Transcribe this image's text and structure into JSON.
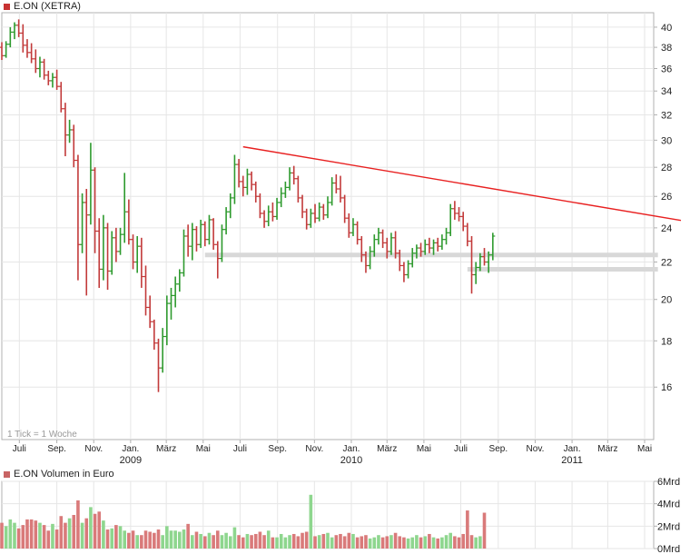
{
  "price_panel": {
    "legend": "E.ON (XETRA)",
    "legend_color": "#c83232",
    "note": "1 Tick = 1 Woche"
  },
  "volume_panel": {
    "legend": "E.ON Volumen in Euro",
    "legend_color": "#c86464"
  },
  "colors": {
    "up": "#2e9a2e",
    "down": "#c23a3a",
    "trendline": "#e82020",
    "support": "#d8d8d8",
    "vol_up": "#8ed68e",
    "vol_down": "#d97a7a",
    "grid": "#e6e6e6",
    "axis": "#b0b0b0"
  },
  "chart_data": [
    {
      "type": "ohlc",
      "interval": "weekly",
      "ylim": [
        14,
        41.5
      ],
      "y_scale": "log",
      "yticks": [
        16,
        18,
        20,
        22,
        24,
        26,
        28,
        30,
        32,
        34,
        36,
        38,
        40
      ],
      "x_start": "2008-06-02",
      "x_end": "2011-05-16",
      "xticks": [
        {
          "date": "2008-07-01",
          "label": "Juli"
        },
        {
          "date": "2008-09-01",
          "label": "Sep."
        },
        {
          "date": "2008-11-01",
          "label": "Nov."
        },
        {
          "date": "2009-01-01",
          "label": "Jan."
        },
        {
          "date": "2009-03-01",
          "label": "März"
        },
        {
          "date": "2009-05-01",
          "label": "Mai"
        },
        {
          "date": "2009-07-01",
          "label": "Juli"
        },
        {
          "date": "2009-09-01",
          "label": "Sep."
        },
        {
          "date": "2009-11-01",
          "label": "Nov."
        },
        {
          "date": "2010-01-01",
          "label": "Jan."
        },
        {
          "date": "2010-03-01",
          "label": "März"
        },
        {
          "date": "2010-05-01",
          "label": "Mai"
        },
        {
          "date": "2010-07-01",
          "label": "Juli"
        },
        {
          "date": "2010-09-01",
          "label": "Sep."
        },
        {
          "date": "2010-11-01",
          "label": "Nov."
        },
        {
          "date": "2011-01-01",
          "label": "Jan."
        },
        {
          "date": "2011-03-01",
          "label": "März"
        },
        {
          "date": "2011-05-01",
          "label": "Mai"
        }
      ],
      "year_labels": [
        {
          "date": "2009-01-01",
          "label": "2009"
        },
        {
          "date": "2010-01-01",
          "label": "2010"
        },
        {
          "date": "2011-01-01",
          "label": "2011"
        }
      ],
      "weeks": [
        {
          "o": 38.0,
          "h": 38.5,
          "l": 36.8,
          "c": 37.2
        },
        {
          "o": 37.2,
          "h": 38.6,
          "l": 37.0,
          "c": 38.3
        },
        {
          "o": 38.3,
          "h": 40.0,
          "l": 38.0,
          "c": 39.5
        },
        {
          "o": 39.5,
          "h": 40.5,
          "l": 38.8,
          "c": 40.2
        },
        {
          "o": 40.2,
          "h": 40.8,
          "l": 39.0,
          "c": 39.4
        },
        {
          "o": 39.4,
          "h": 40.3,
          "l": 37.5,
          "c": 38.2
        },
        {
          "o": 38.2,
          "h": 38.8,
          "l": 37.0,
          "c": 37.5
        },
        {
          "o": 37.5,
          "h": 38.4,
          "l": 36.5,
          "c": 36.9
        },
        {
          "o": 36.9,
          "h": 37.8,
          "l": 35.6,
          "c": 36.0
        },
        {
          "o": 36.0,
          "h": 37.1,
          "l": 35.2,
          "c": 36.6
        },
        {
          "o": 36.6,
          "h": 36.9,
          "l": 35.0,
          "c": 35.4
        },
        {
          "o": 35.4,
          "h": 35.8,
          "l": 34.5,
          "c": 34.9
        },
        {
          "o": 34.9,
          "h": 35.6,
          "l": 34.3,
          "c": 35.2
        },
        {
          "o": 35.2,
          "h": 35.9,
          "l": 34.1,
          "c": 34.4
        },
        {
          "o": 34.4,
          "h": 34.8,
          "l": 32.2,
          "c": 32.5
        },
        {
          "o": 32.5,
          "h": 33.0,
          "l": 28.8,
          "c": 30.4
        },
        {
          "o": 30.4,
          "h": 31.6,
          "l": 29.8,
          "c": 30.8
        },
        {
          "o": 30.8,
          "h": 31.2,
          "l": 28.0,
          "c": 28.5
        },
        {
          "o": 28.5,
          "h": 28.9,
          "l": 21.0,
          "c": 23.0
        },
        {
          "o": 23.0,
          "h": 26.2,
          "l": 22.5,
          "c": 25.6
        },
        {
          "o": 25.6,
          "h": 26.5,
          "l": 20.2,
          "c": 24.8
        },
        {
          "o": 24.8,
          "h": 29.8,
          "l": 24.2,
          "c": 27.8
        },
        {
          "o": 27.8,
          "h": 28.0,
          "l": 22.5,
          "c": 23.8
        },
        {
          "o": 23.8,
          "h": 24.6,
          "l": 20.6,
          "c": 21.6
        },
        {
          "o": 21.6,
          "h": 24.8,
          "l": 21.0,
          "c": 24.0
        },
        {
          "o": 24.0,
          "h": 24.3,
          "l": 20.5,
          "c": 21.5
        },
        {
          "o": 21.5,
          "h": 23.8,
          "l": 21.3,
          "c": 23.4
        },
        {
          "o": 23.4,
          "h": 24.0,
          "l": 22.0,
          "c": 22.6
        },
        {
          "o": 22.6,
          "h": 24.0,
          "l": 22.4,
          "c": 23.6
        },
        {
          "o": 23.6,
          "h": 27.6,
          "l": 23.1,
          "c": 25.0
        },
        {
          "o": 25.0,
          "h": 25.8,
          "l": 23.0,
          "c": 23.3
        },
        {
          "o": 23.3,
          "h": 23.6,
          "l": 21.6,
          "c": 22.0
        },
        {
          "o": 22.0,
          "h": 23.5,
          "l": 21.4,
          "c": 22.9
        },
        {
          "o": 22.9,
          "h": 23.4,
          "l": 20.6,
          "c": 21.2
        },
        {
          "o": 21.2,
          "h": 21.8,
          "l": 19.2,
          "c": 19.6
        },
        {
          "o": 19.6,
          "h": 20.2,
          "l": 18.6,
          "c": 18.9
        },
        {
          "o": 18.9,
          "h": 19.0,
          "l": 17.6,
          "c": 17.9
        },
        {
          "o": 17.9,
          "h": 18.1,
          "l": 15.8,
          "c": 16.8
        },
        {
          "o": 16.8,
          "h": 18.6,
          "l": 16.6,
          "c": 18.2
        },
        {
          "o": 18.2,
          "h": 20.2,
          "l": 17.8,
          "c": 19.8
        },
        {
          "o": 19.8,
          "h": 20.6,
          "l": 19.0,
          "c": 20.2
        },
        {
          "o": 20.2,
          "h": 21.2,
          "l": 19.6,
          "c": 20.8
        },
        {
          "o": 20.8,
          "h": 21.6,
          "l": 20.4,
          "c": 21.4
        },
        {
          "o": 21.4,
          "h": 23.9,
          "l": 21.2,
          "c": 23.5
        },
        {
          "o": 23.5,
          "h": 24.2,
          "l": 22.3,
          "c": 22.9
        },
        {
          "o": 22.9,
          "h": 24.3,
          "l": 22.1,
          "c": 23.9
        },
        {
          "o": 23.9,
          "h": 24.1,
          "l": 22.6,
          "c": 23.0
        },
        {
          "o": 23.0,
          "h": 24.5,
          "l": 22.8,
          "c": 24.2
        },
        {
          "o": 24.2,
          "h": 24.4,
          "l": 22.9,
          "c": 23.3
        },
        {
          "o": 23.3,
          "h": 24.8,
          "l": 23.0,
          "c": 24.5
        },
        {
          "o": 24.5,
          "h": 24.6,
          "l": 22.7,
          "c": 23.0
        },
        {
          "o": 23.0,
          "h": 23.2,
          "l": 21.1,
          "c": 22.2
        },
        {
          "o": 22.2,
          "h": 24.2,
          "l": 22.0,
          "c": 23.9
        },
        {
          "o": 23.9,
          "h": 25.3,
          "l": 23.6,
          "c": 25.0
        },
        {
          "o": 25.0,
          "h": 26.2,
          "l": 24.6,
          "c": 25.9
        },
        {
          "o": 25.9,
          "h": 28.9,
          "l": 25.5,
          "c": 28.2
        },
        {
          "o": 28.2,
          "h": 28.6,
          "l": 26.6,
          "c": 27.0
        },
        {
          "o": 27.0,
          "h": 27.4,
          "l": 26.0,
          "c": 26.6
        },
        {
          "o": 26.6,
          "h": 27.9,
          "l": 26.1,
          "c": 27.5
        },
        {
          "o": 27.5,
          "h": 27.7,
          "l": 26.4,
          "c": 26.8
        },
        {
          "o": 26.8,
          "h": 27.0,
          "l": 25.6,
          "c": 26.0
        },
        {
          "o": 26.0,
          "h": 26.2,
          "l": 24.6,
          "c": 24.9
        },
        {
          "o": 24.9,
          "h": 25.1,
          "l": 24.0,
          "c": 24.4
        },
        {
          "o": 24.4,
          "h": 25.4,
          "l": 24.1,
          "c": 25.0
        },
        {
          "o": 25.0,
          "h": 25.6,
          "l": 24.4,
          "c": 24.7
        },
        {
          "o": 24.7,
          "h": 25.9,
          "l": 24.5,
          "c": 25.6
        },
        {
          "o": 25.6,
          "h": 26.6,
          "l": 25.3,
          "c": 26.2
        },
        {
          "o": 26.2,
          "h": 27.0,
          "l": 25.9,
          "c": 26.6
        },
        {
          "o": 26.6,
          "h": 28.0,
          "l": 26.4,
          "c": 27.6
        },
        {
          "o": 27.6,
          "h": 28.1,
          "l": 26.8,
          "c": 27.2
        },
        {
          "o": 27.2,
          "h": 27.4,
          "l": 25.6,
          "c": 25.9
        },
        {
          "o": 25.9,
          "h": 26.1,
          "l": 24.6,
          "c": 25.0
        },
        {
          "o": 25.0,
          "h": 25.2,
          "l": 23.9,
          "c": 24.2
        },
        {
          "o": 24.2,
          "h": 25.2,
          "l": 24.0,
          "c": 24.9
        },
        {
          "o": 24.9,
          "h": 25.5,
          "l": 24.3,
          "c": 24.6
        },
        {
          "o": 24.6,
          "h": 25.6,
          "l": 24.4,
          "c": 25.3
        },
        {
          "o": 25.3,
          "h": 25.5,
          "l": 24.5,
          "c": 24.8
        },
        {
          "o": 24.8,
          "h": 26.0,
          "l": 24.6,
          "c": 25.6
        },
        {
          "o": 25.6,
          "h": 27.3,
          "l": 25.4,
          "c": 26.9
        },
        {
          "o": 26.9,
          "h": 27.5,
          "l": 26.2,
          "c": 26.5
        },
        {
          "o": 26.5,
          "h": 27.4,
          "l": 25.6,
          "c": 25.9
        },
        {
          "o": 25.9,
          "h": 26.1,
          "l": 24.3,
          "c": 24.6
        },
        {
          "o": 24.6,
          "h": 24.9,
          "l": 23.4,
          "c": 23.7
        },
        {
          "o": 23.7,
          "h": 24.6,
          "l": 23.5,
          "c": 24.2
        },
        {
          "o": 24.2,
          "h": 24.4,
          "l": 23.0,
          "c": 23.3
        },
        {
          "o": 23.3,
          "h": 23.5,
          "l": 22.0,
          "c": 22.4
        },
        {
          "o": 22.4,
          "h": 22.6,
          "l": 21.4,
          "c": 21.8
        },
        {
          "o": 21.8,
          "h": 22.9,
          "l": 21.6,
          "c": 22.6
        },
        {
          "o": 22.6,
          "h": 23.6,
          "l": 22.3,
          "c": 23.3
        },
        {
          "o": 23.3,
          "h": 24.0,
          "l": 23.0,
          "c": 23.7
        },
        {
          "o": 23.7,
          "h": 23.9,
          "l": 22.8,
          "c": 23.1
        },
        {
          "o": 23.1,
          "h": 23.4,
          "l": 22.2,
          "c": 22.6
        },
        {
          "o": 22.6,
          "h": 23.7,
          "l": 22.4,
          "c": 23.4
        },
        {
          "o": 23.4,
          "h": 23.8,
          "l": 22.2,
          "c": 22.5
        },
        {
          "o": 22.5,
          "h": 22.7,
          "l": 21.5,
          "c": 21.8
        },
        {
          "o": 21.8,
          "h": 22.0,
          "l": 20.9,
          "c": 21.3
        },
        {
          "o": 21.3,
          "h": 22.1,
          "l": 21.1,
          "c": 21.9
        },
        {
          "o": 21.9,
          "h": 22.8,
          "l": 21.7,
          "c": 22.5
        },
        {
          "o": 22.5,
          "h": 23.0,
          "l": 22.2,
          "c": 22.8
        },
        {
          "o": 22.8,
          "h": 23.1,
          "l": 22.3,
          "c": 22.6
        },
        {
          "o": 22.6,
          "h": 23.3,
          "l": 22.4,
          "c": 23.0
        },
        {
          "o": 23.0,
          "h": 23.4,
          "l": 22.5,
          "c": 22.8
        },
        {
          "o": 22.8,
          "h": 23.3,
          "l": 22.4,
          "c": 23.1
        },
        {
          "o": 23.1,
          "h": 23.4,
          "l": 22.6,
          "c": 22.9
        },
        {
          "o": 22.9,
          "h": 23.6,
          "l": 22.7,
          "c": 23.3
        },
        {
          "o": 23.3,
          "h": 24.0,
          "l": 23.0,
          "c": 23.7
        },
        {
          "o": 23.7,
          "h": 25.5,
          "l": 23.5,
          "c": 25.2
        },
        {
          "o": 25.2,
          "h": 25.7,
          "l": 24.5,
          "c": 24.9
        },
        {
          "o": 24.9,
          "h": 25.3,
          "l": 24.4,
          "c": 24.7
        },
        {
          "o": 24.7,
          "h": 25.0,
          "l": 23.8,
          "c": 24.1
        },
        {
          "o": 24.1,
          "h": 24.3,
          "l": 22.9,
          "c": 23.2
        },
        {
          "o": 23.2,
          "h": 23.5,
          "l": 20.3,
          "c": 21.3
        },
        {
          "o": 21.3,
          "h": 22.0,
          "l": 20.8,
          "c": 21.7
        },
        {
          "o": 21.7,
          "h": 22.5,
          "l": 21.5,
          "c": 22.3
        },
        {
          "o": 22.3,
          "h": 22.8,
          "l": 21.8,
          "c": 22.0
        },
        {
          "o": 22.0,
          "h": 22.6,
          "l": 21.4,
          "c": 22.4
        },
        {
          "o": 22.4,
          "h": 23.7,
          "l": 22.1,
          "c": 23.5
        }
      ],
      "trendline": [
        {
          "date": "2009-07-06",
          "value": 29.5
        },
        {
          "date": "2011-05-23",
          "value": 24.7
        }
      ],
      "support_bands": [
        {
          "from": "2009-05-04",
          "to": "2011-05-23",
          "value": 22.4
        },
        {
          "from": "2010-07-12",
          "to": "2011-05-23",
          "value": 21.6
        }
      ]
    },
    {
      "type": "bar",
      "title": "E.ON Volumen in Euro",
      "unit": "Mrd",
      "ylim": [
        0,
        6
      ],
      "yticks": [
        0,
        2,
        4,
        6
      ],
      "ytick_labels": [
        "0Mrd",
        "2Mrd",
        "4Mrd",
        "6Mrd"
      ],
      "values": [
        2.3,
        2.0,
        2.6,
        2.3,
        1.8,
        2.1,
        2.6,
        2.6,
        2.5,
        2.3,
        2.1,
        1.6,
        2.2,
        1.7,
        2.9,
        2.3,
        2.7,
        3.0,
        4.3,
        2.3,
        2.7,
        3.7,
        3.1,
        3.3,
        2.5,
        1.7,
        1.8,
        2.1,
        2.0,
        1.6,
        1.4,
        1.6,
        1.2,
        1.2,
        1.6,
        1.5,
        1.4,
        1.7,
        1.2,
        2.0,
        1.6,
        1.6,
        1.5,
        1.7,
        2.2,
        1.2,
        1.5,
        1.3,
        1.1,
        1.4,
        1.2,
        1.6,
        1.2,
        1.4,
        1.1,
        1.9,
        1.2,
        1.0,
        1.3,
        1.2,
        1.3,
        1.5,
        1.2,
        1.6,
        1.0,
        1.0,
        1.3,
        1.0,
        1.2,
        1.3,
        1.1,
        1.4,
        1.5,
        4.8,
        1.1,
        1.2,
        1.3,
        1.4,
        1.0,
        1.2,
        1.3,
        1.1,
        1.4,
        1.3,
        1.0,
        1.1,
        1.2,
        0.9,
        1.0,
        1.2,
        1.0,
        1.1,
        1.2,
        1.4,
        1.1,
        1.0,
        0.9,
        1.0,
        1.2,
        1.0,
        1.1,
        1.3,
        1.0,
        0.9,
        1.0,
        1.2,
        1.4,
        1.1,
        1.0,
        1.3,
        3.4,
        1.2,
        1.0,
        1.1,
        3.2
      ]
    }
  ]
}
